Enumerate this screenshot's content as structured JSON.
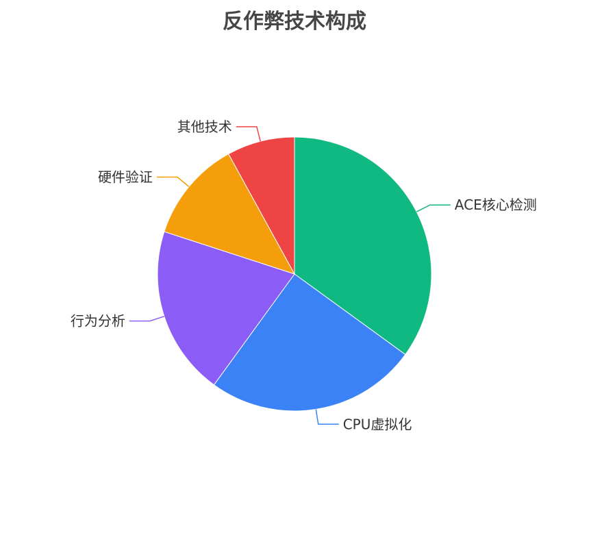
{
  "chart_data": {
    "type": "pie",
    "title": "反作弊技术构成",
    "categories": [
      "ACE核心检测",
      "CPU虚拟化",
      "行为分析",
      "硬件验证",
      "其他技术"
    ],
    "values": [
      35,
      25,
      20,
      12,
      8
    ],
    "colors": [
      "#10b981",
      "#3b82f6",
      "#8b5cf6",
      "#f59e0b",
      "#ef4444"
    ],
    "start": "top",
    "direction": "clockwise",
    "legend": "none"
  }
}
